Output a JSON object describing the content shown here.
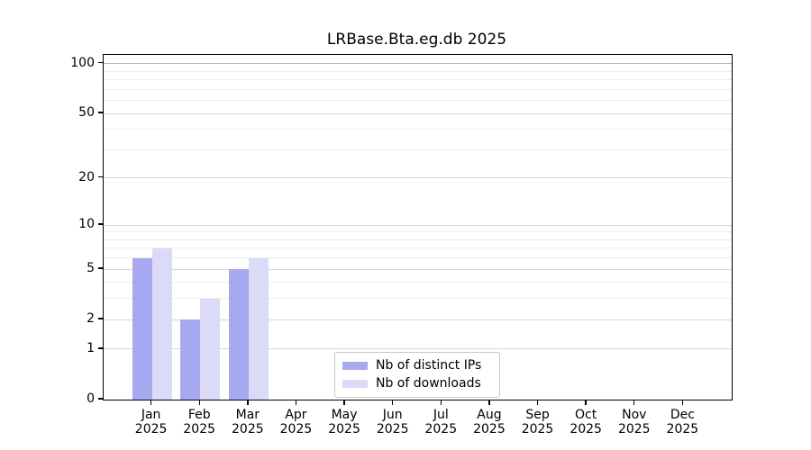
{
  "figure": {
    "background": "#ffffff"
  },
  "chart_data": {
    "type": "bar",
    "title": "LRBase.Bta.eg.db 2025",
    "x": {
      "months": [
        "Jan",
        "Feb",
        "Mar",
        "Apr",
        "May",
        "Jun",
        "Jul",
        "Aug",
        "Sep",
        "Oct",
        "Nov",
        "Dec"
      ],
      "year": "2025"
    },
    "y": {
      "scale": "log1p",
      "ticks_major": [
        0,
        1,
        2,
        5,
        10,
        20,
        50,
        100
      ],
      "ticks_minor": [
        3,
        4,
        6,
        7,
        8,
        9,
        30,
        40,
        60,
        70,
        80,
        90
      ],
      "axis_top_value": 113
    },
    "series": [
      {
        "name": "Nb of distinct IPs",
        "color": "#a8a8f0",
        "values": [
          6,
          2,
          5,
          0,
          0,
          0,
          0,
          0,
          0,
          0,
          0,
          0
        ]
      },
      {
        "name": "Nb of downloads",
        "color": "#dbdbf8",
        "values": [
          7,
          3,
          6,
          0,
          0,
          0,
          0,
          0,
          0,
          0,
          0,
          0
        ]
      }
    ],
    "legend": {
      "position": "lower center",
      "entries": [
        "Nb of distinct IPs",
        "Nb of downloads"
      ]
    },
    "grid": {
      "major_color": "#d6d6d6",
      "minor_color": "#ececec",
      "top_line_color": "#b5b5b5"
    }
  }
}
